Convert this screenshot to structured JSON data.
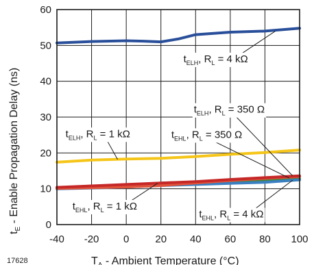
{
  "figure_number": "17628",
  "chart_data": {
    "type": "line",
    "xlabel": {
      "base": "T",
      "sub": "A",
      "rest": " - Ambient Temperature (°C)"
    },
    "ylabel": {
      "base": "t",
      "sub": "E",
      "rest": " - Enable Propagation Delay (ns)"
    },
    "xlim": [
      -40,
      100
    ],
    "ylim": [
      0,
      60
    ],
    "xticks": [
      "-40",
      "-20",
      "0",
      "20",
      "40",
      "60",
      "80",
      "100"
    ],
    "yticks": [
      "0",
      "10",
      "20",
      "30",
      "40",
      "50",
      "60"
    ],
    "grid": true,
    "series": [
      {
        "color": "#2a4f9a",
        "points": [
          [
            -40,
            50.7
          ],
          [
            -20,
            51.1
          ],
          [
            0,
            51.3
          ],
          [
            10,
            51.2
          ],
          [
            20,
            51.0
          ],
          [
            30,
            51.8
          ],
          [
            40,
            53.0
          ],
          [
            60,
            53.7
          ],
          [
            80,
            54.0
          ],
          [
            100,
            54.8
          ]
        ]
      },
      {
        "color": "#f5c518",
        "points": [
          [
            -40,
            17.4
          ],
          [
            -20,
            18.0
          ],
          [
            0,
            18.3
          ],
          [
            20,
            18.5
          ],
          [
            40,
            19.0
          ],
          [
            60,
            19.6
          ],
          [
            80,
            20.1
          ],
          [
            100,
            20.8
          ]
        ]
      },
      {
        "color": "#3a8a3a",
        "points": [
          [
            -40,
            10.2
          ],
          [
            -20,
            10.6
          ],
          [
            0,
            11.0
          ],
          [
            20,
            11.6
          ],
          [
            40,
            11.9
          ],
          [
            60,
            12.2
          ],
          [
            80,
            12.5
          ],
          [
            100,
            12.8
          ]
        ]
      },
      {
        "color": "#3a7fc1",
        "points": [
          [
            -40,
            10.0
          ],
          [
            -20,
            10.2
          ],
          [
            0,
            10.5
          ],
          [
            20,
            10.9
          ],
          [
            40,
            11.2
          ],
          [
            60,
            11.5
          ],
          [
            80,
            11.8
          ],
          [
            100,
            12.5
          ]
        ]
      },
      {
        "color": "#e0533a",
        "points": [
          [
            -40,
            10.1
          ],
          [
            -20,
            10.3
          ],
          [
            0,
            10.5
          ],
          [
            20,
            10.9
          ],
          [
            40,
            11.6
          ],
          [
            60,
            12.3
          ],
          [
            80,
            12.9
          ],
          [
            100,
            13.4
          ]
        ]
      },
      {
        "color": "#c62828",
        "points": [
          [
            -40,
            10.4
          ],
          [
            -20,
            10.8
          ],
          [
            0,
            11.2
          ],
          [
            20,
            11.6
          ],
          [
            40,
            12.0
          ],
          [
            60,
            12.6
          ],
          [
            80,
            13.1
          ],
          [
            100,
            13.6
          ]
        ]
      }
    ],
    "annotations": [
      {
        "base": "t",
        "sub": "ELH",
        "mid": ", R",
        "sub2": "L",
        "rest": " = 4 kΩ",
        "x": 33,
        "y": 45.3,
        "arrow_to": [
          86,
          54.0
        ]
      },
      {
        "base": "t",
        "sub": "ELH",
        "mid": ", R",
        "sub2": "L",
        "rest": " = 350 Ω",
        "x": 39,
        "y": 31.2,
        "arrow_to": [
          96,
          13.6
        ]
      },
      {
        "base": "t",
        "sub": "EHL",
        "mid": ", R",
        "sub2": "L",
        "rest": " = 350 Ω",
        "x": 26,
        "y": 24.2,
        "arrow_to": [
          94,
          13.0
        ]
      },
      {
        "base": "t",
        "sub": "ELH",
        "mid": ", R",
        "sub2": "L",
        "rest": " = 1 kΩ",
        "x": -35,
        "y": 24.4,
        "arrow_to": [
          -5,
          18.2
        ]
      },
      {
        "base": "t",
        "sub": "EHL",
        "mid": ", R",
        "sub2": "L",
        "rest": " = 1 kΩ",
        "x": -31,
        "y": 4.2,
        "arrow_to": [
          18,
          11.5
        ]
      },
      {
        "base": "t",
        "sub": "EHL",
        "mid": ", R",
        "sub2": "L",
        "rest": " = 4 kΩ",
        "x": 42,
        "y": 2.0,
        "arrow_to": [
          96,
          12.4
        ]
      }
    ]
  }
}
